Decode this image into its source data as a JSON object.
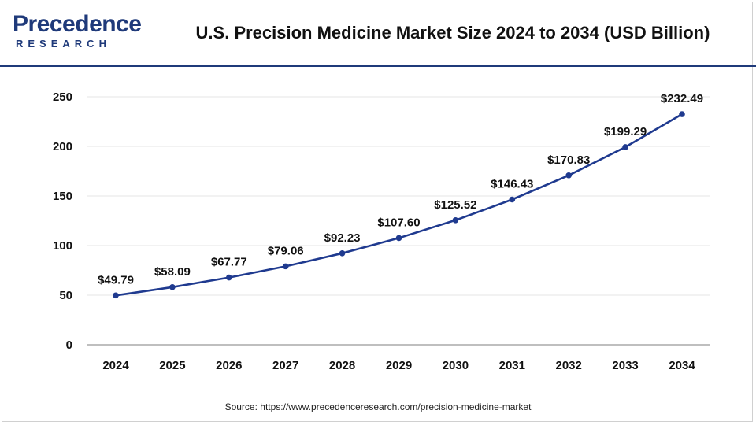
{
  "header": {
    "logo_main": "Precedence",
    "logo_sub": "RESEARCH",
    "title": "U.S. Precision Medicine Market Size 2024 to 2034 (USD Billion)"
  },
  "footer": {
    "source": "Source: https://www.precedenceresearch.com/precision-medicine-market"
  },
  "colors": {
    "line": "#1f3a8f",
    "grid": "#e6e6e6",
    "axis": "#999999",
    "brand": "#1f3a7a"
  },
  "chart_data": {
    "type": "line",
    "title": "U.S. Precision Medicine Market Size 2024 to 2034 (USD Billion)",
    "xlabel": "",
    "ylabel": "",
    "categories": [
      "2024",
      "2025",
      "2026",
      "2027",
      "2028",
      "2029",
      "2030",
      "2031",
      "2032",
      "2033",
      "2034"
    ],
    "values": [
      49.79,
      58.09,
      67.77,
      79.06,
      92.23,
      107.6,
      125.52,
      146.43,
      170.83,
      199.29,
      232.49
    ],
    "data_labels": [
      "$49.79",
      "$58.09",
      "$67.77",
      "$79.06",
      "$92.23",
      "$107.60",
      "$125.52",
      "$146.43",
      "$170.83",
      "$199.29",
      "$232.49"
    ],
    "ylim": [
      0,
      250
    ],
    "yticks": [
      0,
      50,
      100,
      150,
      200,
      250
    ],
    "grid": true
  }
}
